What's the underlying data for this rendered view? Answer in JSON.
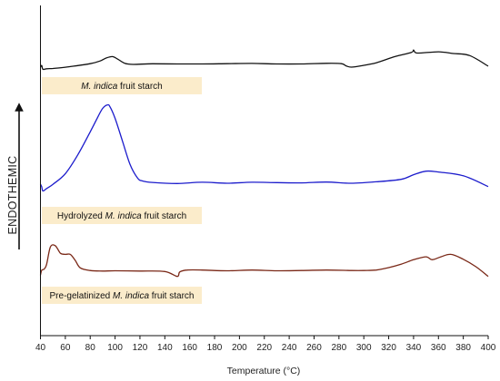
{
  "chart_data": {
    "type": "line",
    "title": "",
    "xlabel": "Temperature (°C)",
    "ylabel": "ENDOTHEMIC",
    "xlim": [
      40,
      400
    ],
    "x_ticks": [
      40,
      60,
      80,
      100,
      120,
      140,
      160,
      180,
      200,
      220,
      240,
      260,
      280,
      300,
      320,
      340,
      360,
      380,
      400
    ],
    "x_tick_labels": [
      "40",
      "60",
      "80",
      "100",
      "120",
      "140",
      "160",
      "180",
      "200",
      "220",
      "240",
      "260",
      "280",
      "300",
      "320",
      "340",
      "360",
      "380",
      "400"
    ],
    "y_axis_ticks": false,
    "grid": false,
    "legend": "none",
    "label_box_color": "#fbeccb",
    "series": [
      {
        "label_prefix": "",
        "label_italic": "M. indica",
        "label_suffix": " fruit starch",
        "color": "#111111",
        "x": [
          40,
          41,
          42,
          45,
          50,
          60,
          70,
          80,
          88,
          93,
          98,
          102,
          108,
          115,
          130,
          150,
          170,
          190,
          210,
          230,
          250,
          270,
          282,
          286,
          290,
          298,
          310,
          325,
          338,
          340,
          341,
          344,
          360,
          372,
          385,
          400
        ],
        "y": [
          1.3,
          1.95,
          0.55,
          0.75,
          0.85,
          1.3,
          1.9,
          2.6,
          3.6,
          4.7,
          5.2,
          4.3,
          2.7,
          2.35,
          2.55,
          2.5,
          2.5,
          2.6,
          2.7,
          2.5,
          2.5,
          2.75,
          2.6,
          1.75,
          1.35,
          1.85,
          2.95,
          5.2,
          6.7,
          7.6,
          6.9,
          6.5,
          6.95,
          6.35,
          5.6,
          1.7
        ]
      },
      {
        "label_prefix": "Hydrolyzed ",
        "label_italic": "M. indica",
        "label_suffix": " fruit starch",
        "color": "#1c1ccc",
        "x": [
          40,
          41,
          42,
          45,
          50,
          60,
          70,
          80,
          86,
          90,
          94,
          96,
          100,
          106,
          112,
          118,
          122,
          130,
          150,
          170,
          190,
          210,
          230,
          250,
          270,
          290,
          310,
          330,
          340,
          350,
          360,
          380,
          400
        ],
        "y": [
          3.5,
          2.2,
          0.2,
          1.4,
          3.4,
          8.5,
          17.5,
          28.5,
          35.5,
          39.8,
          41.5,
          40.5,
          35.0,
          24.0,
          13.0,
          6.5,
          5.0,
          4.3,
          3.8,
          4.4,
          3.9,
          4.4,
          4.2,
          4.1,
          4.5,
          3.9,
          4.6,
          5.8,
          8.0,
          9.7,
          9.3,
          7.5,
          2.3
        ]
      },
      {
        "label_prefix": "Pre-gelatinized ",
        "label_italic": "M. indica",
        "label_suffix": " fruit starch",
        "color": "#7a2817",
        "x": [
          40,
          41,
          43,
          45,
          48,
          52,
          56,
          60,
          64,
          68,
          72,
          80,
          90,
          100,
          120,
          140,
          150,
          152,
          158,
          170,
          190,
          210,
          230,
          250,
          270,
          290,
          300,
          310,
          320,
          330,
          340,
          350,
          355,
          362,
          370,
          380,
          390,
          400
        ],
        "y": [
          -0.5,
          1.5,
          2.0,
          4.0,
          11.0,
          11.5,
          8.5,
          8.0,
          8.0,
          5.5,
          2.5,
          1.4,
          1.2,
          1.3,
          1.2,
          1.0,
          -1.0,
          0.8,
          1.6,
          1.6,
          1.3,
          1.6,
          1.3,
          1.4,
          1.6,
          1.4,
          1.4,
          1.6,
          2.6,
          4.0,
          5.8,
          7.0,
          5.8,
          7.0,
          8.0,
          6.0,
          3.0,
          -1.0
        ]
      }
    ]
  }
}
